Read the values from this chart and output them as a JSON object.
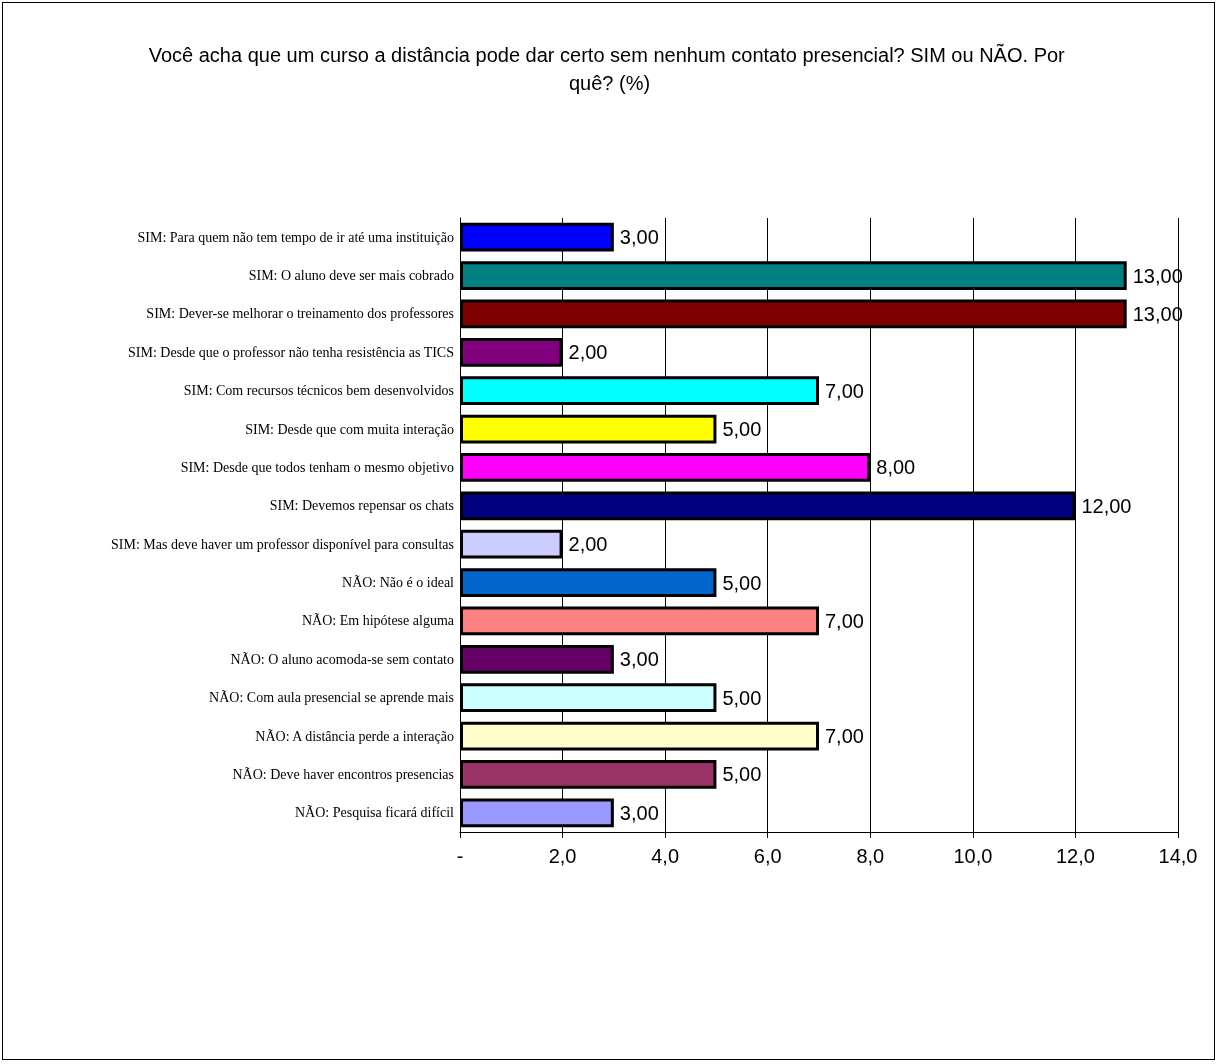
{
  "chart_data": {
    "type": "bar",
    "orientation": "horizontal",
    "title": "Você acha que um curso a distância pode dar certo sem nenhum contato presencial? SIM ou NÃO. Por quê? (%)",
    "categories": [
      "SIM: Para quem não tem tempo de ir até uma instituição",
      "SIM: O aluno deve ser mais cobrado",
      "SIM: Dever-se melhorar o treinamento dos professores",
      "SIM: Desde que o professor não tenha resistência as TICS",
      "SIM: Com recursos técnicos bem desenvolvidos",
      "SIM: Desde que com muita interação",
      "SIM: Desde que todos tenham o mesmo objetivo",
      "SIM: Devemos repensar os chats",
      "SIM: Mas deve haver um professor disponível para consultas",
      "NÃO: Não é o ideal",
      "NÃO: Em hipótese alguma",
      "NÃO: O aluno acomoda-se sem contato",
      "NÃO: Com aula presencial se aprende mais",
      "NÃO: A distância perde a interação",
      "NÃO: Deve haver encontros presencias",
      "NÃO: Pesquisa ficará difícil"
    ],
    "values": [
      3,
      13,
      13,
      2,
      7,
      5,
      8,
      12,
      2,
      5,
      7,
      3,
      5,
      7,
      5,
      3
    ],
    "value_labels": [
      "3,00",
      "13,00",
      "13,00",
      "2,00",
      "7,00",
      "5,00",
      "8,00",
      "12,00",
      "2,00",
      "5,00",
      "7,00",
      "3,00",
      "5,00",
      "7,00",
      "5,00",
      "3,00"
    ],
    "colors": [
      "#0000ff",
      "#008080",
      "#800000",
      "#800080",
      "#00ffff",
      "#ffff00",
      "#ff00ff",
      "#000080",
      "#ccccff",
      "#0066cc",
      "#ff8080",
      "#660066",
      "#ccffff",
      "#ffffcc",
      "#993366",
      "#9999ff"
    ],
    "xlim": [
      0,
      14
    ],
    "xticks": [
      {
        "value": 0,
        "label": "-"
      },
      {
        "value": 2,
        "label": "2,0"
      },
      {
        "value": 4,
        "label": "4,0"
      },
      {
        "value": 6,
        "label": "6,0"
      },
      {
        "value": 8,
        "label": "8,0"
      },
      {
        "value": 10,
        "label": "10,0"
      },
      {
        "value": 12,
        "label": "12,0"
      },
      {
        "value": 14,
        "label": "14,0"
      }
    ],
    "grid": "x"
  }
}
